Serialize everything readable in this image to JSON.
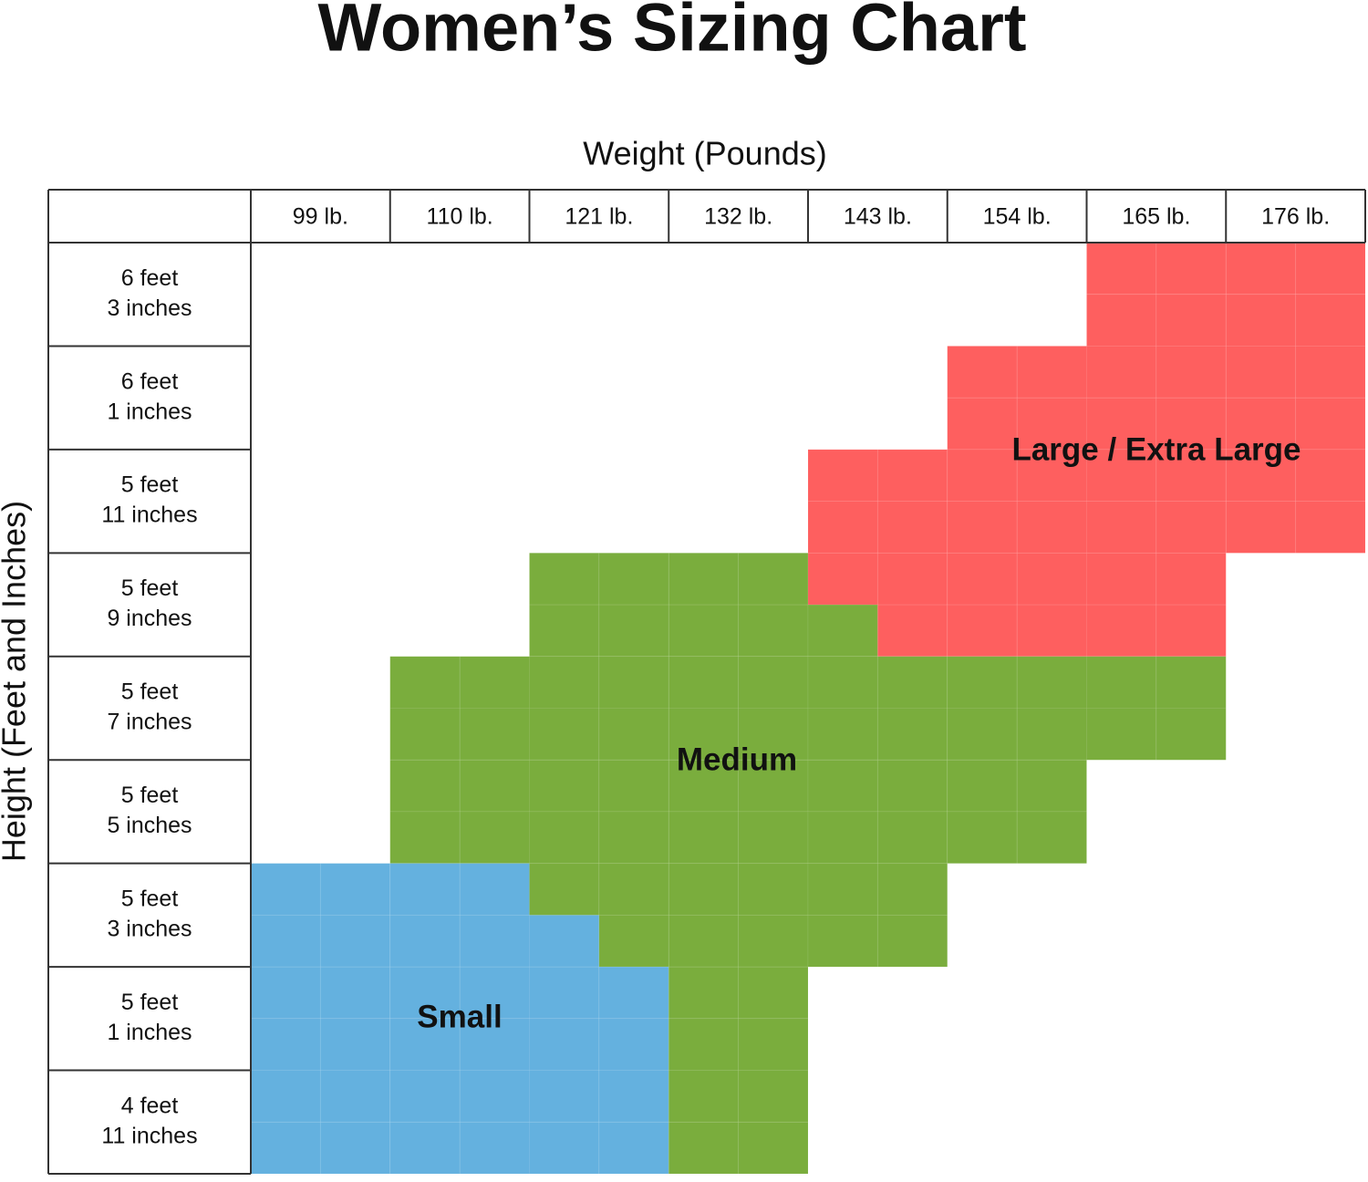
{
  "title": "Women’s Sizing Chart",
  "x_axis_label": "Weight (Pounds)",
  "y_axis_label": "Height (Feet and Inches)",
  "columns": [
    "99 lb.",
    "110 lb.",
    "121 lb.",
    "132 lb.",
    "143 lb.",
    "154 lb.",
    "165 lb.",
    "176 lb."
  ],
  "rows": [
    [
      "6 feet",
      "3 inches"
    ],
    [
      "6 feet",
      "1 inches"
    ],
    [
      "5 feet",
      "11 inches"
    ],
    [
      "5 feet",
      "9 inches"
    ],
    [
      "5 feet",
      "7 inches"
    ],
    [
      "5 feet",
      "5 inches"
    ],
    [
      "5 feet",
      "3 inches"
    ],
    [
      "5 feet",
      "1 inches"
    ],
    [
      "4 feet",
      "11 inches"
    ]
  ],
  "regions": [
    {
      "label": "Small",
      "color": "#64b1df"
    },
    {
      "label": "Medium",
      "color": "#7aad3d"
    },
    {
      "label": "Large / Extra Large",
      "color": "#fe5f5f"
    }
  ]
}
